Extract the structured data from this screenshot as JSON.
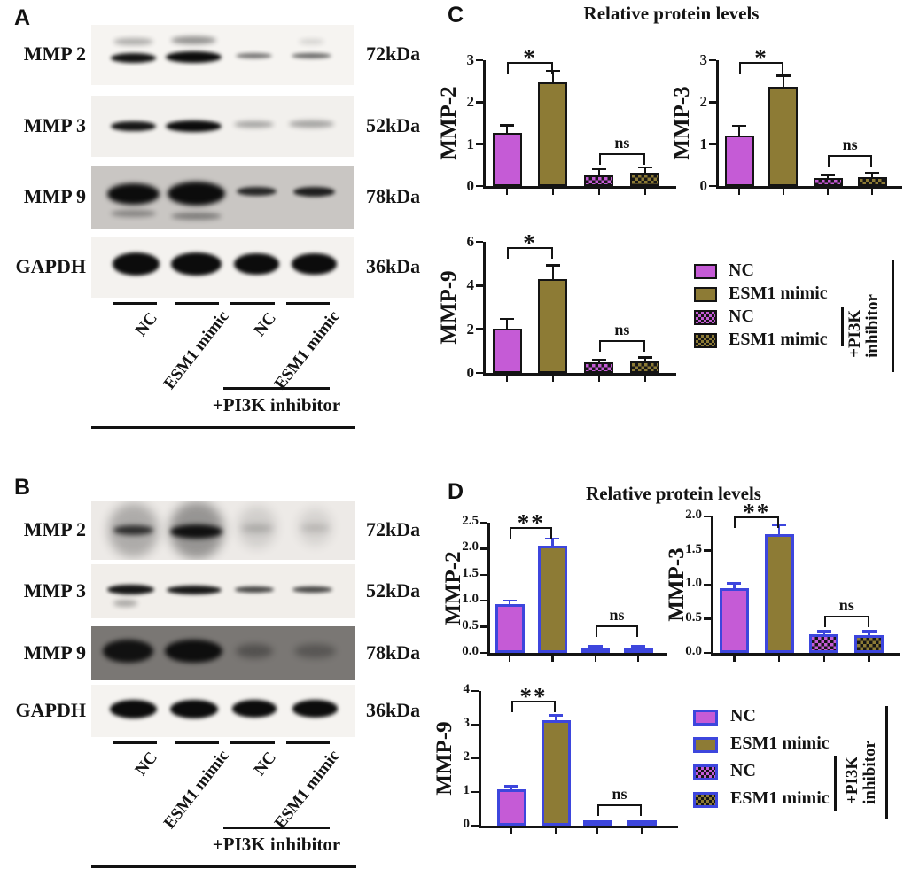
{
  "colors": {
    "magenta": "#c55bd6",
    "olive": "#8d7b35",
    "blue_outline": "#3d46dd",
    "black": "#141414"
  },
  "blot_panels": [
    {
      "id": "A",
      "letter": "A",
      "rows": [
        {
          "protein": "MMP 2",
          "kda": "72kDa",
          "bg": "#f6f4f1",
          "bands": [
            [
              16,
              28,
              15,
              13,
              0.3,
              3
            ],
            [
              39,
              26,
              17,
              14,
              0.42,
              3
            ],
            [
              84,
              28,
              10,
              9,
              0.15,
              3
            ],
            [
              16,
              55,
              17,
              16,
              0.97,
              2
            ],
            [
              39,
              54,
              21,
              19,
              1,
              2
            ],
            [
              62,
              52,
              14,
              9,
              0.55,
              2
            ],
            [
              84,
              51,
              15,
              9,
              0.6,
              2
            ]
          ]
        },
        {
          "protein": "MMP 3",
          "kda": "52kDa",
          "bg": "#f2f0ed",
          "bands": [
            [
              16,
              50,
              17,
              17,
              0.95,
              2
            ],
            [
              39,
              50,
              21,
              19,
              1,
              2
            ],
            [
              62,
              47,
              15,
              11,
              0.35,
              3
            ],
            [
              84,
              46,
              17,
              11,
              0.35,
              3
            ]
          ]
        },
        {
          "protein": "MMP 9",
          "kda": "78kDa",
          "bg": "#c9c6c3",
          "bands": [
            [
              16,
              45,
              20,
              34,
              1,
              3
            ],
            [
              40,
              45,
              22,
              38,
              1,
              3
            ],
            [
              63,
              41,
              15,
              15,
              0.85,
              2
            ],
            [
              85,
              42,
              16,
              16,
              0.9,
              2
            ],
            [
              16,
              76,
              17,
              12,
              0.35,
              3
            ],
            [
              40,
              80,
              19,
              12,
              0.4,
              3
            ]
          ]
        },
        {
          "protein": "GAPDH",
          "kda": "36kDa",
          "bg": "#f4f2ef",
          "bands": [
            [
              17,
              44,
              18,
              38,
              1,
              2
            ],
            [
              40,
              44,
              19,
              38,
              1,
              2
            ],
            [
              63,
              44,
              17,
              36,
              1,
              2
            ],
            [
              85,
              44,
              17,
              36,
              1,
              2
            ]
          ]
        }
      ],
      "lane_labels": [
        "NC",
        "ESM1 mimic",
        "NC",
        "ESM1 mimic"
      ],
      "treatment_label": "+PI3K inhibitor"
    },
    {
      "id": "B",
      "letter": "B",
      "rows": [
        {
          "protein": "MMP 2",
          "kda": "72kDa",
          "bg": "#edeae7",
          "bands": [
            [
              16,
              50,
              19,
              92,
              0.28,
              6
            ],
            [
              40,
              50,
              21,
              96,
              0.38,
              6
            ],
            [
              63,
              45,
              15,
              72,
              0.12,
              6
            ],
            [
              85,
              45,
              13,
              62,
              0.1,
              6
            ],
            [
              16,
              50,
              15,
              16,
              0.78,
              3
            ],
            [
              40,
              52,
              20,
              24,
              0.97,
              3
            ],
            [
              63,
              47,
              12,
              14,
              0.2,
              4
            ],
            [
              85,
              46,
              11,
              12,
              0.16,
              4
            ]
          ]
        },
        {
          "protein": "MMP 3",
          "kda": "52kDa",
          "bg": "#f1eeea",
          "bands": [
            [
              15,
              47,
              18,
              19,
              0.95,
              2
            ],
            [
              39,
              48,
              21,
              17,
              0.95,
              2
            ],
            [
              62,
              47,
              15,
              11,
              0.75,
              2
            ],
            [
              84,
              47,
              15,
              11,
              0.75,
              2
            ],
            [
              13,
              72,
              9,
              12,
              0.3,
              3
            ]
          ]
        },
        {
          "protein": "MMP 9",
          "kda": "78kDa",
          "bg": "#7a7774",
          "bands": [
            [
              14,
              46,
              19,
              42,
              0.95,
              3
            ],
            [
              39,
              46,
              22,
              44,
              0.98,
              3
            ],
            [
              62,
              46,
              14,
              26,
              0.35,
              4
            ],
            [
              85,
              46,
              16,
              26,
              0.3,
              4
            ]
          ]
        },
        {
          "protein": "GAPDH",
          "kda": "36kDa",
          "bg": "#f5f3f0",
          "bands": [
            [
              16,
              46,
              18,
              36,
              1,
              2
            ],
            [
              39,
              46,
              18,
              36,
              1,
              2
            ],
            [
              62,
              46,
              17,
              33,
              1,
              2
            ],
            [
              85,
              46,
              17,
              33,
              1,
              2
            ]
          ]
        }
      ],
      "lane_labels": [
        "NC",
        "ESM1 mimic",
        "NC",
        "ESM1 mimic"
      ],
      "treatment_label": "+PI3K inhibitor"
    }
  ],
  "chart_panels": [
    {
      "id": "C",
      "letter": "C",
      "title": "Relative protein levels"
    },
    {
      "id": "D",
      "letter": "D",
      "title": "Relative protein levels"
    }
  ],
  "legend": {
    "entries": [
      {
        "label": "NC",
        "fill": "magenta",
        "pattern": "solid"
      },
      {
        "label": "ESM1 mimic",
        "fill": "olive",
        "pattern": "solid"
      },
      {
        "label": "NC",
        "fill": "magenta",
        "pattern": "checker"
      },
      {
        "label": "ESM1 mimic",
        "fill": "olive",
        "pattern": "checker"
      }
    ],
    "bracket_line1": "+PI3K",
    "bracket_line2": "inhibitor"
  },
  "chart_data": [
    {
      "key": "C-MMP2",
      "panel": "C",
      "type": "bar",
      "ylabel": "MMP-2",
      "categories": [
        "NC",
        "ESM1 mimic",
        "NC (+PI3K inhibitor)",
        "ESM1 mimic (+PI3K inhibitor)"
      ],
      "values": [
        1.27,
        2.47,
        0.26,
        0.31
      ],
      "errors": [
        0.18,
        0.28,
        0.14,
        0.13
      ],
      "ylim": [
        0,
        3
      ],
      "yticks": [
        0,
        1,
        2,
        3
      ],
      "ytick_labels": [
        "0",
        "1",
        "2",
        "3"
      ],
      "significance": [
        {
          "bars": [
            0,
            1
          ],
          "label": "*",
          "y": 2.95
        },
        {
          "bars": [
            2,
            3
          ],
          "label": "ns",
          "y": 0.78
        }
      ]
    },
    {
      "key": "C-MMP3",
      "panel": "C",
      "type": "bar",
      "ylabel": "MMP-3",
      "categories": [
        "NC",
        "ESM1 mimic",
        "NC (+PI3K inhibitor)",
        "ESM1 mimic (+PI3K inhibitor)"
      ],
      "values": [
        1.21,
        2.36,
        0.19,
        0.22
      ],
      "errors": [
        0.23,
        0.27,
        0.07,
        0.1
      ],
      "ylim": [
        0,
        3
      ],
      "yticks": [
        0,
        1,
        2,
        3
      ],
      "ytick_labels": [
        "0",
        "1",
        "2",
        "3"
      ],
      "significance": [
        {
          "bars": [
            0,
            1
          ],
          "label": "*",
          "y": 2.95
        },
        {
          "bars": [
            2,
            3
          ],
          "label": "ns",
          "y": 0.75
        }
      ]
    },
    {
      "key": "C-MMP9",
      "panel": "C",
      "type": "bar",
      "ylabel": "MMP-9",
      "categories": [
        "NC",
        "ESM1 mimic",
        "NC (+PI3K inhibitor)",
        "ESM1 mimic (+PI3K inhibitor)"
      ],
      "values": [
        2.03,
        4.28,
        0.5,
        0.52
      ],
      "errors": [
        0.45,
        0.65,
        0.08,
        0.18
      ],
      "ylim": [
        0,
        6
      ],
      "yticks": [
        0,
        2,
        4,
        6
      ],
      "ytick_labels": [
        "0",
        "2",
        "4",
        "6"
      ],
      "significance": [
        {
          "bars": [
            0,
            1
          ],
          "label": "*",
          "y": 5.75
        },
        {
          "bars": [
            2,
            3
          ],
          "label": "ns",
          "y": 1.5
        }
      ]
    },
    {
      "key": "D-MMP2",
      "panel": "D",
      "type": "bar",
      "ylabel": "MMP-2",
      "categories": [
        "NC",
        "ESM1 mimic",
        "NC (+PI3K inhibitor)",
        "ESM1 mimic (+PI3K inhibitor)"
      ],
      "values": [
        0.93,
        2.06,
        0.09,
        0.09
      ],
      "errors": [
        0.07,
        0.13,
        0.04,
        0.04
      ],
      "ylim": [
        0,
        2.5
      ],
      "yticks": [
        0,
        0.5,
        1,
        1.5,
        2,
        2.5
      ],
      "ytick_labels": [
        "0.0",
        "0.5",
        "1.0",
        "1.5",
        "2.0",
        "2.5"
      ],
      "significance": [
        {
          "bars": [
            0,
            1
          ],
          "label": "**",
          "y": 2.42
        },
        {
          "bars": [
            2,
            3
          ],
          "label": "ns",
          "y": 0.52
        }
      ]
    },
    {
      "key": "D-MMP3",
      "panel": "D",
      "type": "bar",
      "ylabel": "MMP-3",
      "categories": [
        "NC",
        "ESM1 mimic",
        "NC (+PI3K inhibitor)",
        "ESM1 mimic (+PI3K inhibitor)"
      ],
      "values": [
        0.95,
        1.74,
        0.27,
        0.26
      ],
      "errors": [
        0.07,
        0.13,
        0.05,
        0.06
      ],
      "ylim": [
        0,
        2
      ],
      "yticks": [
        0,
        0.5,
        1,
        1.5,
        2
      ],
      "ytick_labels": [
        "0.0",
        "0.5",
        "1.0",
        "1.5",
        "2.0"
      ],
      "significance": [
        {
          "bars": [
            0,
            1
          ],
          "label": "**",
          "y": 2.0
        },
        {
          "bars": [
            2,
            3
          ],
          "label": "ns",
          "y": 0.55
        }
      ]
    },
    {
      "key": "D-MMP9",
      "panel": "D",
      "type": "bar",
      "ylabel": "MMP-9",
      "categories": [
        "NC",
        "ESM1 mimic",
        "NC (+PI3K inhibitor)",
        "ESM1 mimic (+PI3K inhibitor)"
      ],
      "values": [
        1.07,
        3.12,
        0.07,
        0.07
      ],
      "errors": [
        0.1,
        0.15,
        0.04,
        0.04
      ],
      "ylim": [
        0,
        4
      ],
      "yticks": [
        0,
        1,
        2,
        3,
        4
      ],
      "ytick_labels": [
        "0",
        "1",
        "2",
        "3",
        "4"
      ],
      "significance": [
        {
          "bars": [
            0,
            1
          ],
          "label": "**",
          "y": 3.7
        },
        {
          "bars": [
            2,
            3
          ],
          "label": "ns",
          "y": 0.62
        }
      ]
    }
  ]
}
